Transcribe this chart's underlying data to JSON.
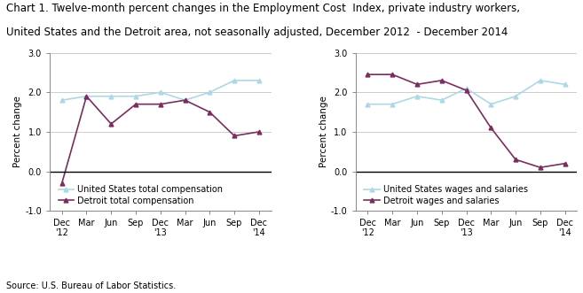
{
  "title_line1": "Chart 1. Twelve-month percent changes in the Employment Cost  Index, private industry workers,",
  "title_line2": "United States and the Detroit area, not seasonally adjusted, December 2012  - December 2014",
  "ylabel": "Percent change",
  "source": "Source: U.S. Bureau of Labor Statistics.",
  "left_us_data": [
    1.8,
    1.9,
    1.9,
    1.9,
    2.0,
    1.8,
    2.0,
    2.3,
    2.3
  ],
  "left_detroit_data": [
    -0.3,
    1.9,
    1.2,
    1.7,
    1.7,
    1.8,
    1.5,
    0.9,
    1.0
  ],
  "right_us_data": [
    1.7,
    1.7,
    1.9,
    1.8,
    2.1,
    1.7,
    1.9,
    2.3,
    2.2
  ],
  "right_detroit_data": [
    2.45,
    2.45,
    2.2,
    2.3,
    2.05,
    1.1,
    0.3,
    0.1,
    0.2
  ],
  "us_color": "#add8e6",
  "detroit_color": "#7B2D5E",
  "ylim": [
    -1.0,
    3.0
  ],
  "yticks": [
    -1.0,
    0.0,
    1.0,
    2.0,
    3.0
  ],
  "ytick_labels": [
    "-1.0",
    "0.0",
    "1.0",
    "2.0",
    "3.0"
  ],
  "left_legend1": "United States total compensation",
  "left_legend2": "Detroit total compensation",
  "right_legend1": "United States wages and salaries",
  "right_legend2": "Detroit wages and salaries",
  "title_fontsize": 8.5,
  "axis_label_fontsize": 7.5,
  "tick_fontsize": 7,
  "legend_fontsize": 7,
  "source_fontsize": 7
}
